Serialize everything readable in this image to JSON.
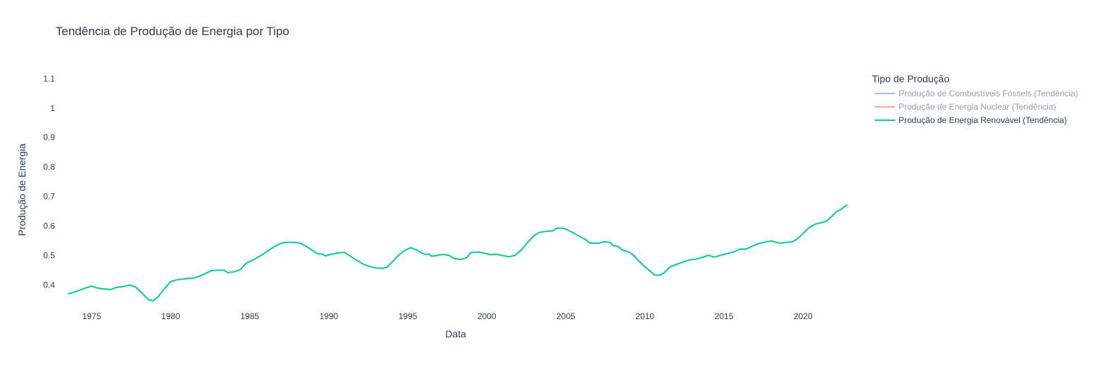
{
  "chart_data": {
    "type": "line",
    "title": "Tendência de Produção de Energia por Tipo",
    "xlabel": "Data",
    "ylabel": "Produção de Energia",
    "x_ticks": [
      1975,
      1980,
      1985,
      1990,
      1995,
      2000,
      2005,
      2010,
      2015,
      2020
    ],
    "y_ticks": [
      0.4,
      0.5,
      0.6,
      0.7,
      0.8,
      0.9,
      1,
      1.1
    ],
    "y_tick_labels": [
      "0.4",
      "0.5",
      "0.6",
      "0.7",
      "0.8",
      "0.9",
      "1",
      "1.1"
    ],
    "xlim": [
      1973.4,
      1975.0
    ],
    "xrange": [
      1973.3,
      2022.8
    ],
    "ylim": [
      0.33,
      1.14
    ],
    "grid": false,
    "legend": {
      "title": "Tipo de Produção",
      "placement": "right",
      "entries": [
        {
          "name": "Produção de Combustíveis Fósseis (Tendência)",
          "color": "#636efa",
          "visible": false
        },
        {
          "name": "Produção de Energia Nuclear (Tendência)",
          "color": "#ef553b",
          "visible": false
        },
        {
          "name": "Produção de Energia Renovável (Tendência)",
          "color": "#00cc96",
          "visible": true
        }
      ]
    },
    "series": [
      {
        "name": "Produção de Energia Renovável (Tendência)",
        "color": "#00cc96",
        "points": [
          [
            1973.5,
            0.37
          ],
          [
            1974.0,
            0.378
          ],
          [
            1974.5,
            0.388
          ],
          [
            1975.0,
            0.397
          ],
          [
            1975.3,
            0.391
          ],
          [
            1975.6,
            0.388
          ],
          [
            1976.2,
            0.385
          ],
          [
            1976.6,
            0.393
          ],
          [
            1977.0,
            0.395
          ],
          [
            1977.4,
            0.4
          ],
          [
            1977.8,
            0.393
          ],
          [
            1978.2,
            0.372
          ],
          [
            1978.6,
            0.35
          ],
          [
            1978.9,
            0.347
          ],
          [
            1979.2,
            0.36
          ],
          [
            1979.6,
            0.388
          ],
          [
            1980.0,
            0.412
          ],
          [
            1980.4,
            0.418
          ],
          [
            1981.0,
            0.422
          ],
          [
            1981.5,
            0.424
          ],
          [
            1982.0,
            0.434
          ],
          [
            1982.3,
            0.442
          ],
          [
            1982.6,
            0.449
          ],
          [
            1983.0,
            0.451
          ],
          [
            1983.4,
            0.45
          ],
          [
            1983.6,
            0.442
          ],
          [
            1984.0,
            0.445
          ],
          [
            1984.4,
            0.452
          ],
          [
            1984.8,
            0.475
          ],
          [
            1985.2,
            0.485
          ],
          [
            1985.6,
            0.497
          ],
          [
            1986.0,
            0.51
          ],
          [
            1986.4,
            0.525
          ],
          [
            1986.8,
            0.538
          ],
          [
            1987.2,
            0.545
          ],
          [
            1987.8,
            0.545
          ],
          [
            1988.2,
            0.542
          ],
          [
            1988.6,
            0.53
          ],
          [
            1989.0,
            0.516
          ],
          [
            1989.3,
            0.506
          ],
          [
            1989.6,
            0.505
          ],
          [
            1989.8,
            0.499
          ],
          [
            1990.2,
            0.505
          ],
          [
            1990.6,
            0.509
          ],
          [
            1991.0,
            0.511
          ],
          [
            1991.4,
            0.497
          ],
          [
            1991.8,
            0.483
          ],
          [
            1992.2,
            0.47
          ],
          [
            1992.6,
            0.463
          ],
          [
            1993.0,
            0.458
          ],
          [
            1993.4,
            0.457
          ],
          [
            1993.7,
            0.461
          ],
          [
            1994.0,
            0.478
          ],
          [
            1994.4,
            0.5
          ],
          [
            1994.8,
            0.518
          ],
          [
            1995.2,
            0.527
          ],
          [
            1995.6,
            0.518
          ],
          [
            1995.9,
            0.508
          ],
          [
            1996.1,
            0.504
          ],
          [
            1996.3,
            0.506
          ],
          [
            1996.5,
            0.498
          ],
          [
            1996.8,
            0.5
          ],
          [
            1997.2,
            0.504
          ],
          [
            1997.6,
            0.501
          ],
          [
            1997.9,
            0.491
          ],
          [
            1998.3,
            0.487
          ],
          [
            1998.7,
            0.492
          ],
          [
            1999.0,
            0.51
          ],
          [
            1999.4,
            0.512
          ],
          [
            1999.8,
            0.509
          ],
          [
            2000.2,
            0.503
          ],
          [
            2000.6,
            0.505
          ],
          [
            2001.0,
            0.5
          ],
          [
            2001.4,
            0.496
          ],
          [
            2001.8,
            0.501
          ],
          [
            2002.2,
            0.52
          ],
          [
            2002.6,
            0.546
          ],
          [
            2003.0,
            0.568
          ],
          [
            2003.3,
            0.578
          ],
          [
            2003.7,
            0.582
          ],
          [
            2004.2,
            0.584
          ],
          [
            2004.4,
            0.593
          ],
          [
            2004.8,
            0.593
          ],
          [
            2005.0,
            0.59
          ],
          [
            2005.4,
            0.579
          ],
          [
            2005.8,
            0.567
          ],
          [
            2006.2,
            0.556
          ],
          [
            2006.5,
            0.543
          ],
          [
            2006.8,
            0.542
          ],
          [
            2007.1,
            0.542
          ],
          [
            2007.4,
            0.547
          ],
          [
            2007.8,
            0.545
          ],
          [
            2008.0,
            0.533
          ],
          [
            2008.3,
            0.531
          ],
          [
            2008.6,
            0.518
          ],
          [
            2008.9,
            0.514
          ],
          [
            2009.1,
            0.509
          ],
          [
            2009.3,
            0.5
          ],
          [
            2009.6,
            0.483
          ],
          [
            2010.0,
            0.462
          ],
          [
            2010.3,
            0.449
          ],
          [
            2010.6,
            0.434
          ],
          [
            2010.9,
            0.433
          ],
          [
            2011.2,
            0.441
          ],
          [
            2011.6,
            0.462
          ],
          [
            2012.0,
            0.47
          ],
          [
            2012.4,
            0.478
          ],
          [
            2012.8,
            0.485
          ],
          [
            2013.2,
            0.488
          ],
          [
            2013.6,
            0.493
          ],
          [
            2014.0,
            0.501
          ],
          [
            2014.4,
            0.495
          ],
          [
            2014.8,
            0.501
          ],
          [
            2015.2,
            0.507
          ],
          [
            2015.6,
            0.512
          ],
          [
            2016.0,
            0.522
          ],
          [
            2016.4,
            0.522
          ],
          [
            2016.8,
            0.532
          ],
          [
            2017.2,
            0.541
          ],
          [
            2017.6,
            0.546
          ],
          [
            2018.0,
            0.55
          ],
          [
            2018.3,
            0.545
          ],
          [
            2018.6,
            0.542
          ],
          [
            2018.9,
            0.545
          ],
          [
            2019.3,
            0.546
          ],
          [
            2019.6,
            0.555
          ],
          [
            2020.0,
            0.575
          ],
          [
            2020.4,
            0.595
          ],
          [
            2020.8,
            0.607
          ],
          [
            2021.2,
            0.612
          ],
          [
            2021.5,
            0.617
          ],
          [
            2021.8,
            0.632
          ],
          [
            2022.1,
            0.648
          ],
          [
            2022.4,
            0.657
          ],
          [
            2022.8,
            0.672
          ]
        ]
      }
    ]
  }
}
